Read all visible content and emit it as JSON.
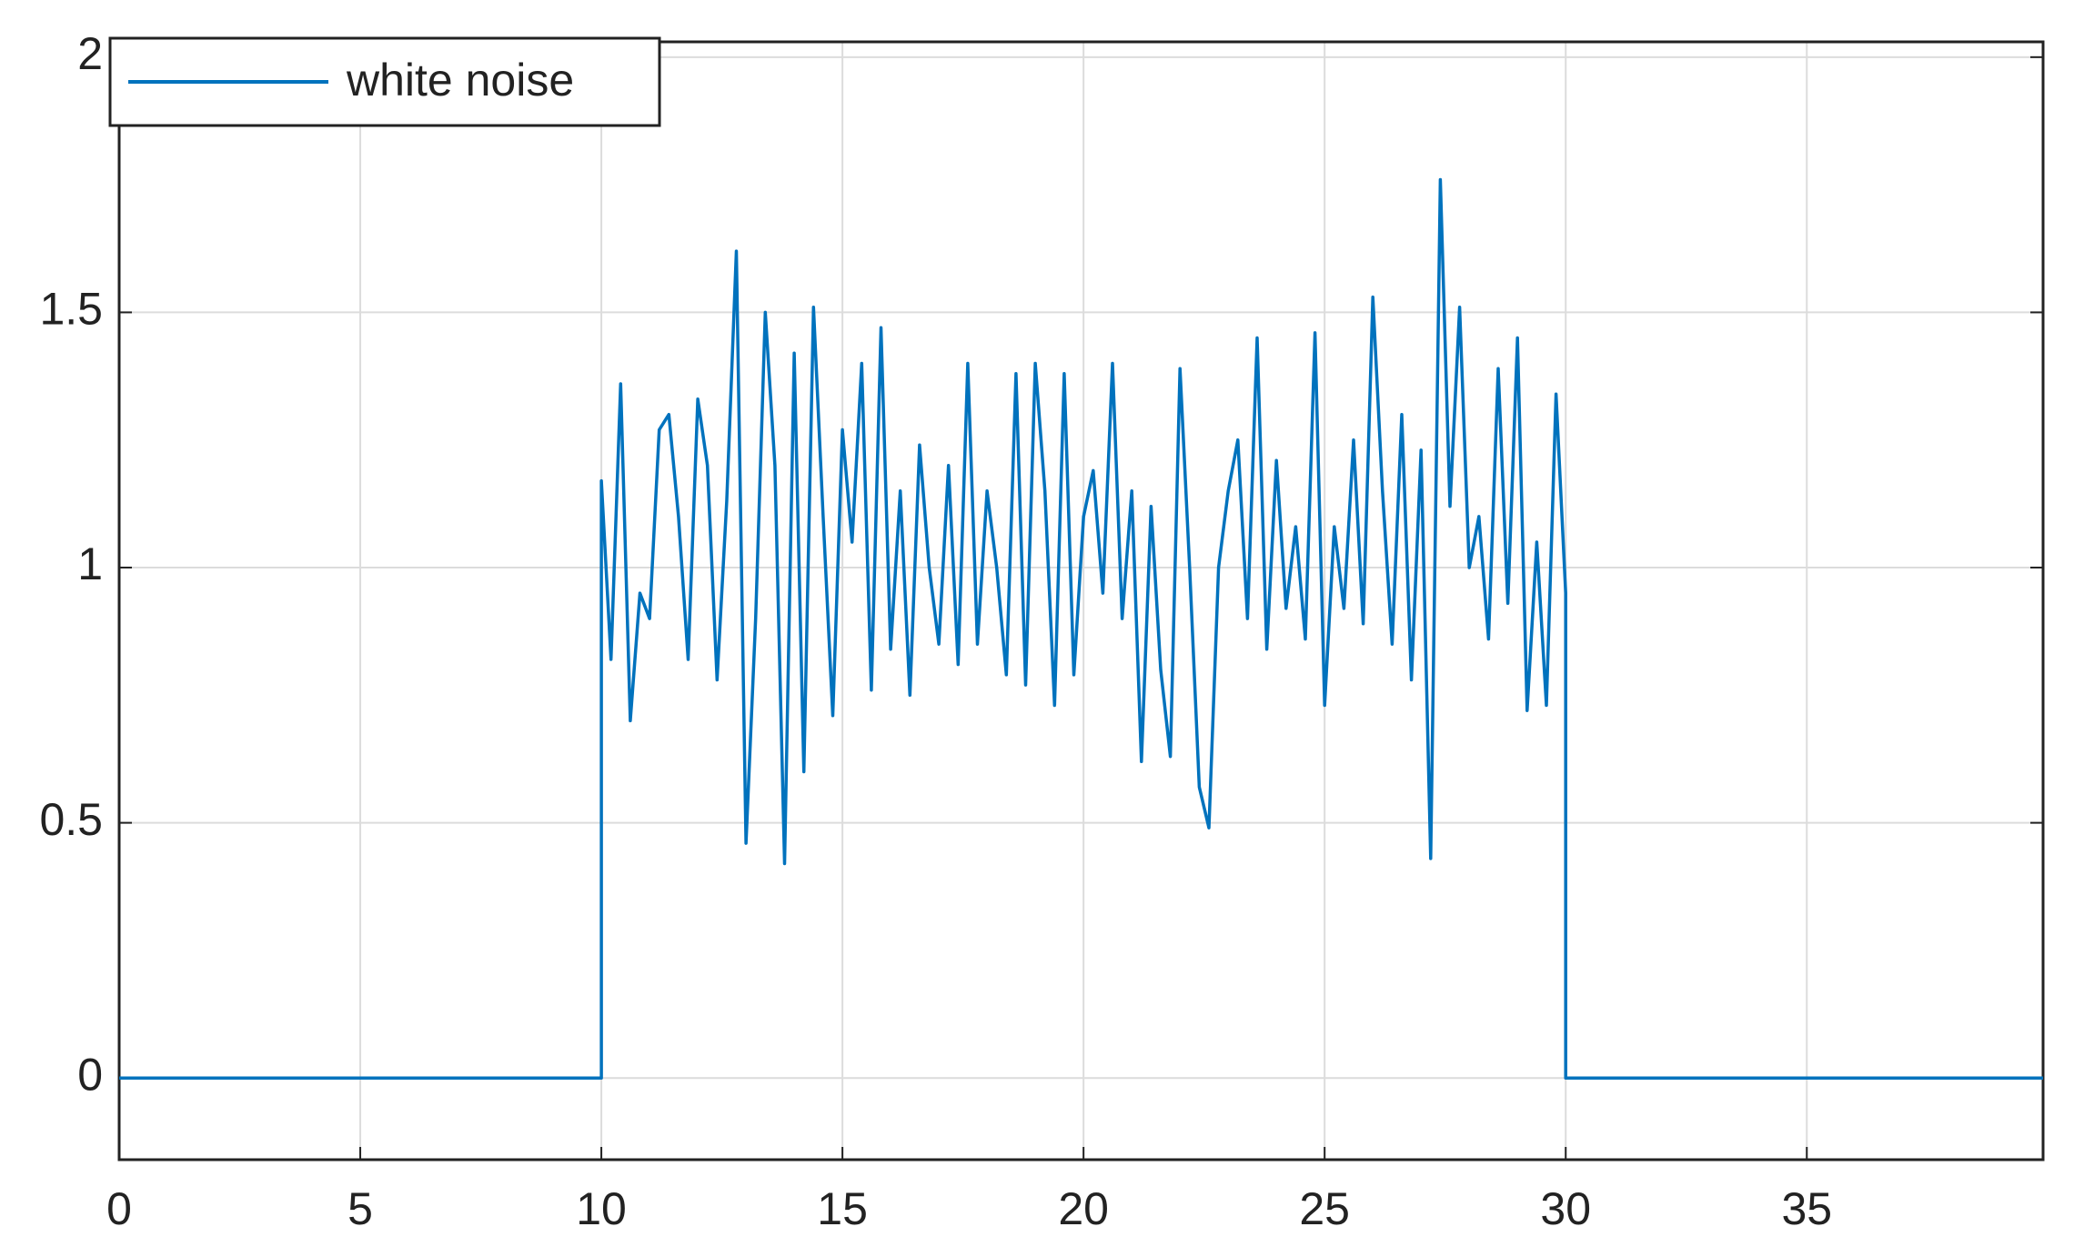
{
  "chart_data": {
    "type": "line",
    "x": [
      0,
      10,
      10.0,
      10.2,
      10.4,
      10.6,
      10.8,
      11.0,
      11.2,
      11.4,
      11.6,
      11.8,
      12.0,
      12.2,
      12.4,
      12.6,
      12.8,
      13.0,
      13.2,
      13.4,
      13.6,
      13.8,
      14.0,
      14.2,
      14.4,
      14.6,
      14.8,
      15.0,
      15.2,
      15.4,
      15.6,
      15.8,
      16.0,
      16.2,
      16.4,
      16.6,
      16.8,
      17.0,
      17.2,
      17.4,
      17.6,
      17.8,
      18.0,
      18.2,
      18.4,
      18.6,
      18.8,
      19.0,
      19.2,
      19.4,
      19.6,
      19.8,
      20.0,
      20.2,
      20.4,
      20.6,
      20.8,
      21.0,
      21.2,
      21.4,
      21.6,
      21.8,
      22.0,
      22.2,
      22.4,
      22.6,
      22.8,
      23.0,
      23.2,
      23.4,
      23.6,
      23.8,
      24.0,
      24.2,
      24.4,
      24.6,
      24.8,
      25.0,
      25.2,
      25.4,
      25.6,
      25.8,
      26.0,
      26.2,
      26.4,
      26.6,
      26.8,
      27.0,
      27.2,
      27.4,
      27.6,
      27.8,
      28.0,
      28.2,
      28.4,
      28.6,
      28.8,
      29.0,
      29.2,
      29.4,
      29.6,
      29.8,
      30.0,
      30,
      39.9
    ],
    "series": [
      {
        "name": "white noise",
        "color": "#0072bd",
        "values": [
          0,
          0,
          1.17,
          0.82,
          1.36,
          0.7,
          0.95,
          0.9,
          1.27,
          1.3,
          1.1,
          0.82,
          1.33,
          1.2,
          0.78,
          1.13,
          1.62,
          0.46,
          0.9,
          1.5,
          1.2,
          0.42,
          1.42,
          0.6,
          1.51,
          1.1,
          0.71,
          1.27,
          1.05,
          1.4,
          0.76,
          1.47,
          0.84,
          1.15,
          0.75,
          1.24,
          1.0,
          0.85,
          1.2,
          0.81,
          1.4,
          0.85,
          1.15,
          1.0,
          0.79,
          1.38,
          0.77,
          1.4,
          1.15,
          0.73,
          1.38,
          0.79,
          1.1,
          1.19,
          0.95,
          1.4,
          0.9,
          1.15,
          0.62,
          1.12,
          0.8,
          0.63,
          1.39,
          1.0,
          0.57,
          0.49,
          1.0,
          1.15,
          1.25,
          0.9,
          1.45,
          0.84,
          1.21,
          0.92,
          1.08,
          0.86,
          1.46,
          0.73,
          1.08,
          0.92,
          1.25,
          0.89,
          1.53,
          1.15,
          0.85,
          1.3,
          0.78,
          1.23,
          0.43,
          1.76,
          1.12,
          1.51,
          1.0,
          1.1,
          0.86,
          1.39,
          0.93,
          1.45,
          0.72,
          1.05,
          0.73,
          1.34,
          0.95,
          0,
          0
        ]
      }
    ],
    "xlim": [
      0,
      39.9
    ],
    "xticks": [
      0,
      5,
      10,
      15,
      20,
      25,
      30,
      35
    ],
    "ylim": [
      -0.16,
      2.03
    ],
    "yticks": [
      0,
      0.5,
      1,
      1.5,
      2
    ],
    "grid": true,
    "legend": "upper left"
  }
}
